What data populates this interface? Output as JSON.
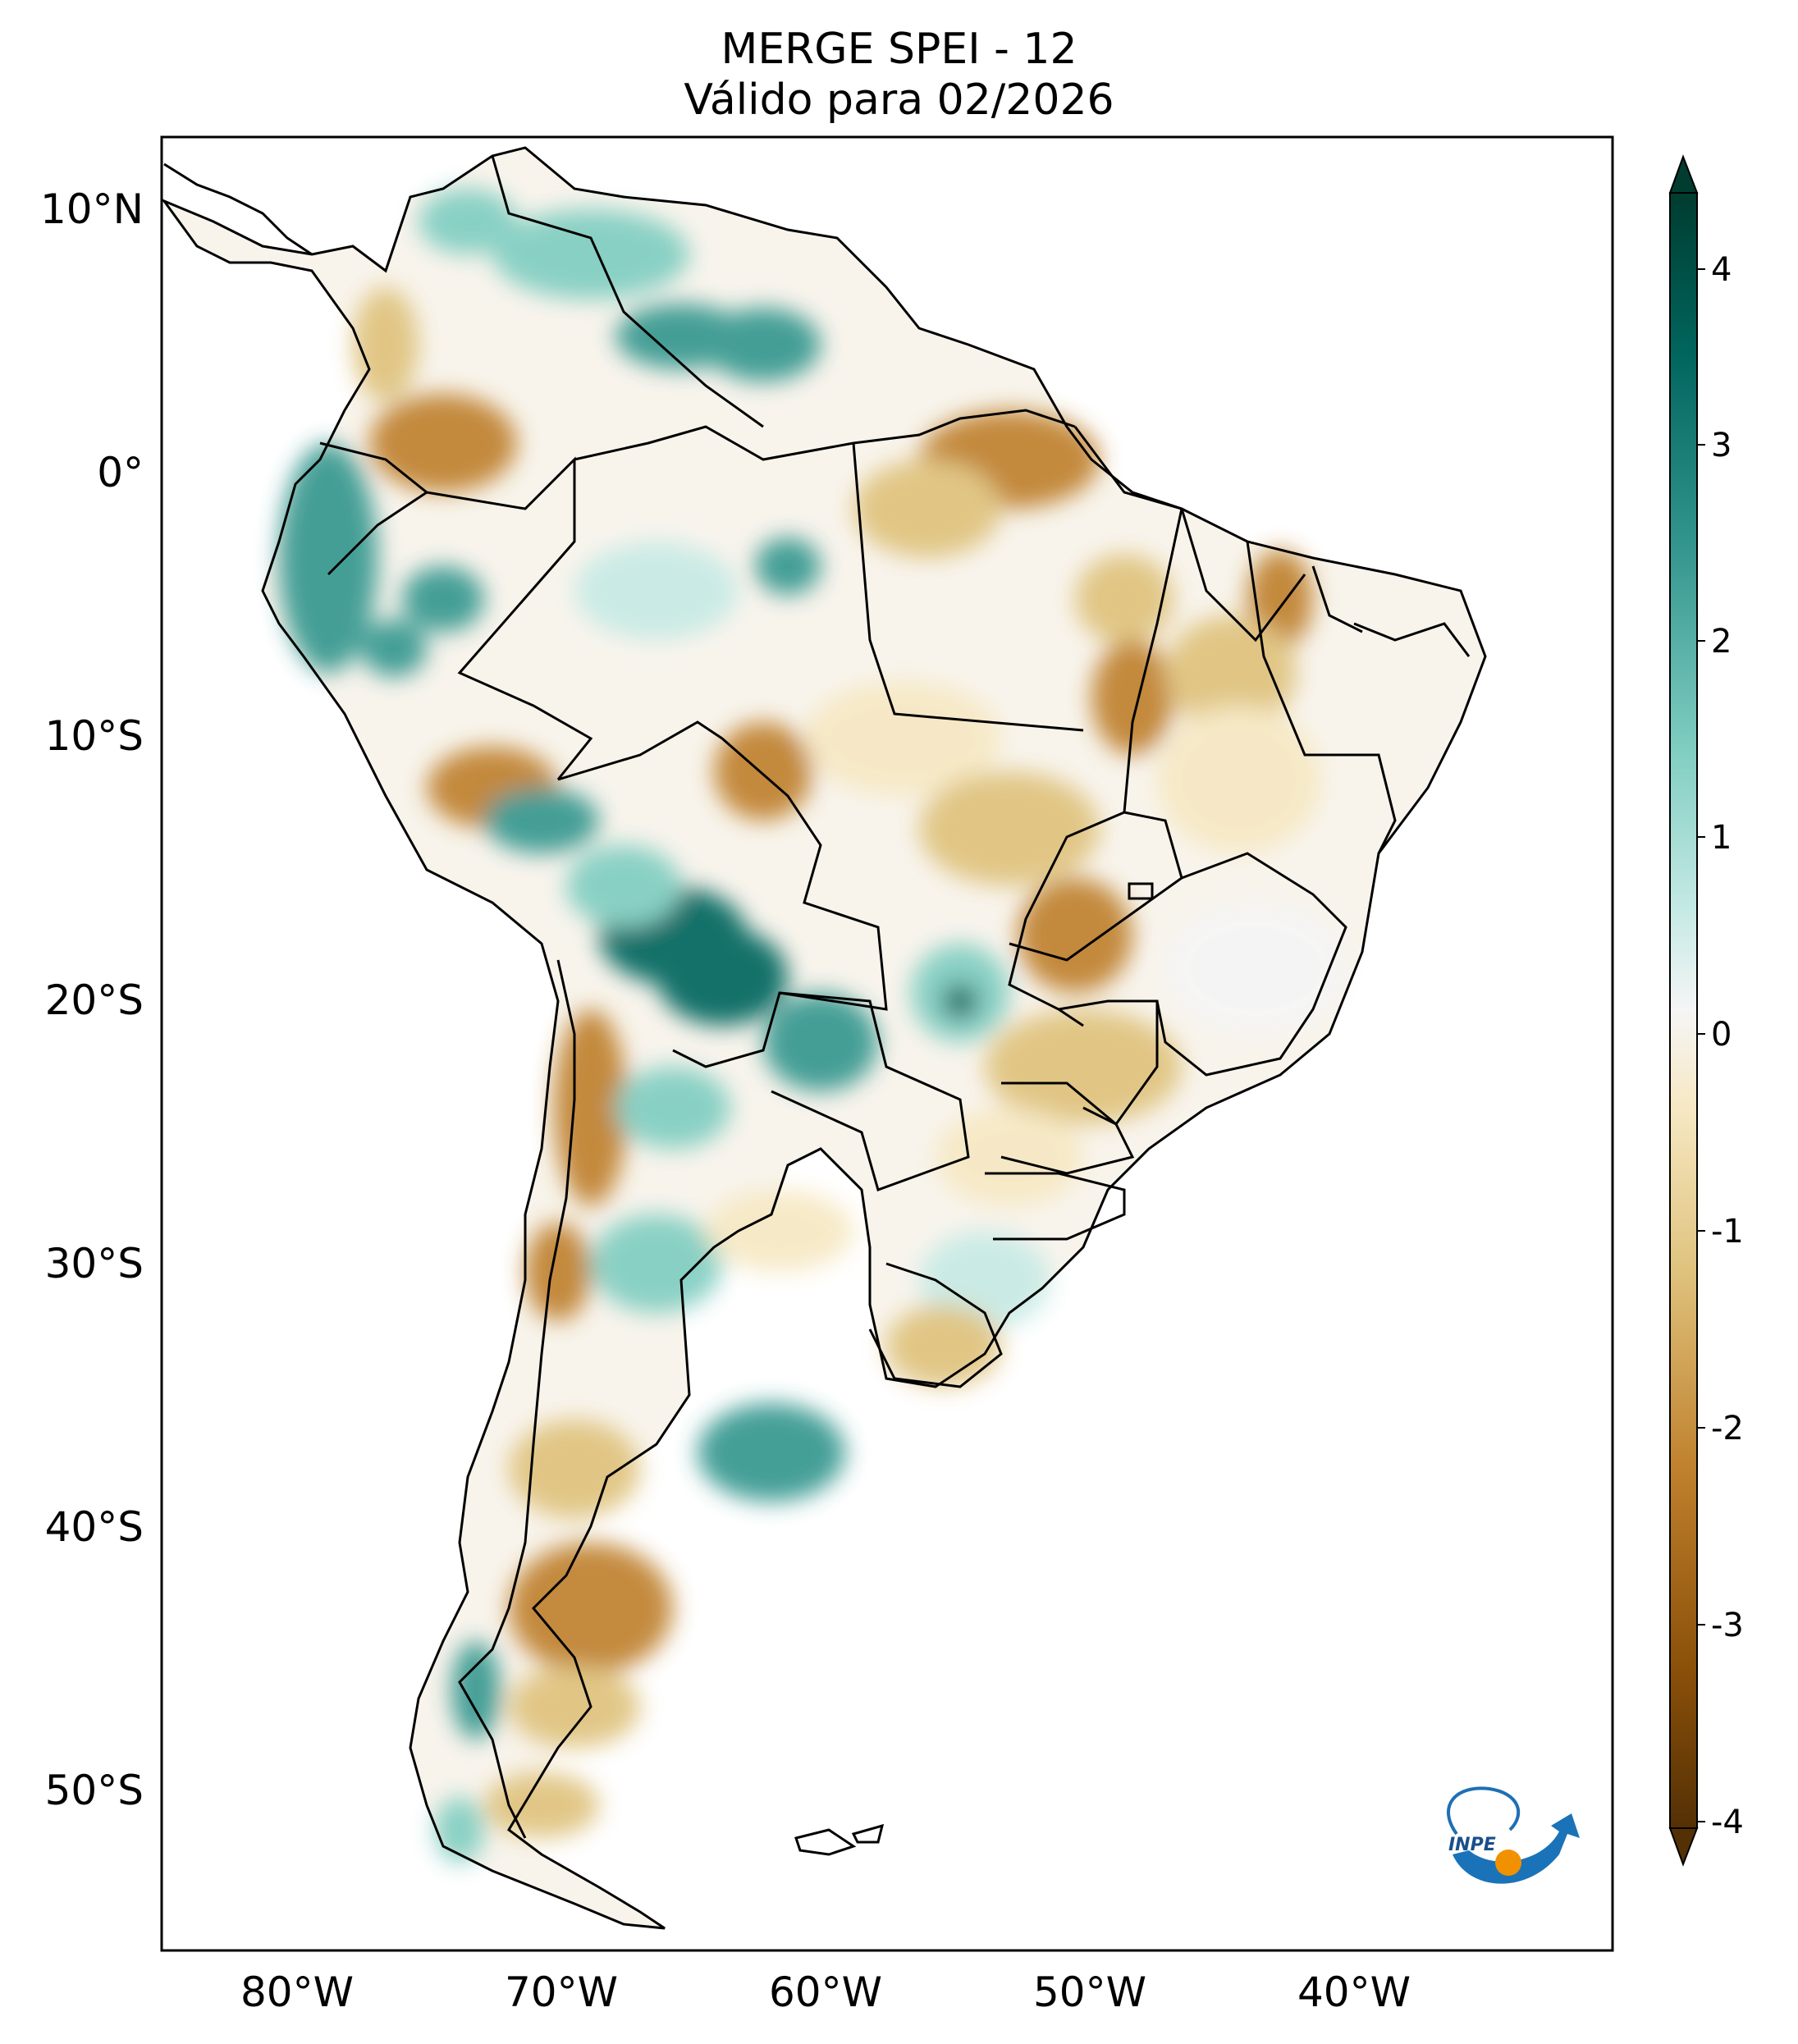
{
  "title": "MERGE   SPEI - 12",
  "subtitle": "Válido para 02/2026",
  "lat_ticks": [
    "10°N",
    "0°",
    "10°S",
    "20°S",
    "30°S",
    "40°S",
    "50°S"
  ],
  "lon_ticks": [
    "80°W",
    "70°W",
    "60°W",
    "50°W",
    "40°W"
  ],
  "colorbar": {
    "ticks": [
      "4",
      "3",
      "2",
      "1",
      "0",
      "-1",
      "-2",
      "-3",
      "-4"
    ],
    "colors": {
      "dry_extreme": "#543005",
      "dry_strong": "#8c510a",
      "dry_moderate": "#bf812d",
      "dry_mild": "#dfc27d",
      "dry_slight": "#f6e8c3",
      "neutral": "#f5f5f5",
      "wet_slight": "#c7eae5",
      "wet_mild": "#80cdc1",
      "wet_moderate": "#35978f",
      "wet_strong": "#01665e",
      "wet_extreme": "#003c30"
    }
  },
  "logo": {
    "text": "INPE"
  }
}
